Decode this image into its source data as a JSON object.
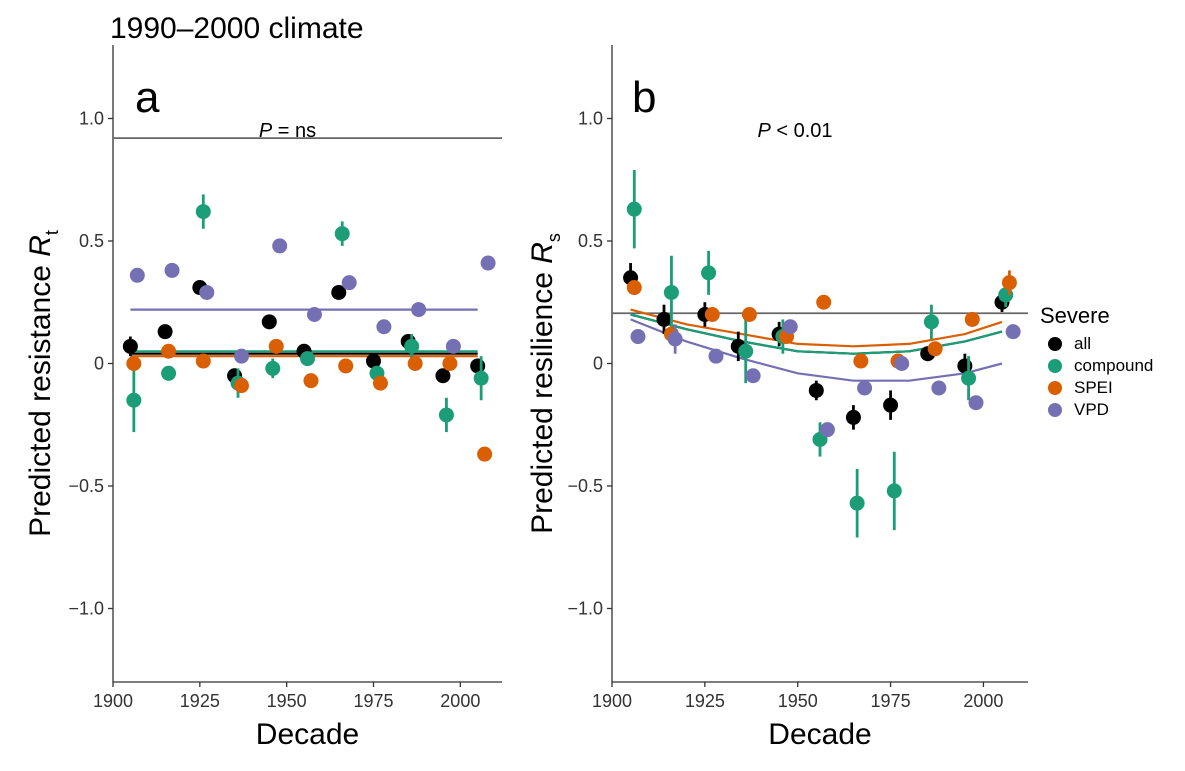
{
  "figure_title": "1990–2000 climate",
  "legend": {
    "title": "Severe",
    "items": [
      {
        "label": "all",
        "color": "#000000"
      },
      {
        "label": "compound",
        "color": "#1b9e77"
      },
      {
        "label": "SPEI",
        "color": "#d95f02"
      },
      {
        "label": "VPD",
        "color": "#7570b3"
      }
    ]
  },
  "chart_data": [
    {
      "type": "scatter",
      "panel_label": "a",
      "annotation": {
        "italic": "P",
        "rest": " = ns"
      },
      "xlabel": "Decade",
      "ylabel": {
        "main": "Predicted resistance ",
        "italic": "R",
        "sub": "t"
      },
      "xlim": [
        1900,
        2012
      ],
      "ylim": [
        -1.3,
        1.3
      ],
      "xticks": [
        1900,
        1925,
        1950,
        1975,
        2000
      ],
      "yticks": [
        1.0,
        0.5,
        0,
        -0.5,
        -1.0
      ],
      "ytick_labels": [
        "1.0",
        "0.5",
        "0",
        "−0.5",
        "−1.0"
      ],
      "reference_line": 0.92,
      "series": [
        {
          "name": "all",
          "color": "#000000",
          "points": [
            [
              1905,
              0.07,
              0.04
            ],
            [
              1915,
              0.13,
              0.02
            ],
            [
              1925,
              0.31,
              0.02
            ],
            [
              1935,
              -0.05,
              0.03
            ],
            [
              1945,
              0.17,
              0.02
            ],
            [
              1955,
              0.05,
              0.02
            ],
            [
              1965,
              0.29,
              0.02
            ],
            [
              1975,
              0.01,
              0.02
            ],
            [
              1985,
              0.09,
              0.03
            ],
            [
              1995,
              -0.05,
              0.02
            ],
            [
              2005,
              -0.01,
              0.03
            ]
          ],
          "fit": [
            [
              1905,
              0.04
            ],
            [
              2005,
              0.04
            ]
          ]
        },
        {
          "name": "compound",
          "color": "#1b9e77",
          "points": [
            [
              1906,
              -0.15,
              0.13
            ],
            [
              1916,
              -0.04,
              0.03
            ],
            [
              1926,
              0.62,
              0.07
            ],
            [
              1936,
              -0.08,
              0.06
            ],
            [
              1946,
              -0.02,
              0.04
            ],
            [
              1956,
              0.02,
              0.02
            ],
            [
              1966,
              0.53,
              0.05
            ],
            [
              1976,
              -0.04,
              0.03
            ],
            [
              1986,
              0.07,
              0.05
            ],
            [
              1996,
              -0.21,
              0.07
            ],
            [
              2006,
              -0.06,
              0.09
            ]
          ],
          "fit": [
            [
              1905,
              0.05
            ],
            [
              2005,
              0.05
            ]
          ]
        },
        {
          "name": "SPEI",
          "color": "#d95f02",
          "points": [
            [
              1906,
              0,
              0.02
            ],
            [
              1916,
              0.05,
              0.02
            ],
            [
              1926,
              0.01,
              0.02
            ],
            [
              1937,
              -0.09,
              0.03
            ],
            [
              1947,
              0.07,
              0.02
            ],
            [
              1957,
              -0.07,
              0.02
            ],
            [
              1967,
              -0.01,
              0.02
            ],
            [
              1977,
              -0.08,
              0.02
            ],
            [
              1987,
              0,
              0.02
            ],
            [
              1997,
              0,
              0.02
            ],
            [
              2007,
              -0.37,
              0.03
            ]
          ],
          "fit": [
            [
              1905,
              0.03
            ],
            [
              2005,
              0.03
            ]
          ]
        },
        {
          "name": "VPD",
          "color": "#7570b3",
          "points": [
            [
              1907,
              0.36,
              0.02
            ],
            [
              1917,
              0.38,
              0.02
            ],
            [
              1927,
              0.29,
              0.02
            ],
            [
              1937,
              0.03,
              0.02
            ],
            [
              1948,
              0.48,
              0.02
            ],
            [
              1958,
              0.2,
              0.02
            ],
            [
              1968,
              0.33,
              0.02
            ],
            [
              1978,
              0.15,
              0.02
            ],
            [
              1988,
              0.22,
              0.02
            ],
            [
              1998,
              0.07,
              0.02
            ],
            [
              2008,
              0.41,
              0.02
            ]
          ],
          "fit": [
            [
              1905,
              0.22
            ],
            [
              2005,
              0.22
            ]
          ]
        }
      ]
    },
    {
      "type": "scatter",
      "panel_label": "b",
      "annotation": {
        "italic": "P",
        "rest": " < 0.01"
      },
      "xlabel": "Decade",
      "ylabel": {
        "main": "Predicted resilience ",
        "italic": "R",
        "sub": "s"
      },
      "xlim": [
        1900,
        2012
      ],
      "ylim": [
        -1.3,
        1.3
      ],
      "xticks": [
        1900,
        1925,
        1950,
        1975,
        2000
      ],
      "yticks": [
        1.0,
        0.5,
        0,
        -0.5,
        -1.0
      ],
      "ytick_labels": [
        "1.0",
        "0.5",
        "0",
        "−0.5",
        "−1.0"
      ],
      "reference_line": 0.205,
      "series": [
        {
          "name": "all",
          "color": "#000000",
          "points": [
            [
              1905,
              0.35,
              0.06
            ],
            [
              1914,
              0.18,
              0.06
            ],
            [
              1925,
              0.2,
              0.05
            ],
            [
              1934,
              0.07,
              0.06
            ],
            [
              1945,
              0.12,
              0.05
            ],
            [
              1955,
              -0.11,
              0.04
            ],
            [
              1965,
              -0.22,
              0.05
            ],
            [
              1975,
              -0.17,
              0.06
            ],
            [
              1985,
              0.04,
              0.03
            ],
            [
              1995,
              -0.01,
              0.05
            ],
            [
              2005,
              0.25,
              0.04
            ]
          ],
          "fit": [
            [
              1905,
              0.2
            ],
            [
              1920,
              0.14
            ],
            [
              1935,
              0.09
            ],
            [
              1950,
              0.05
            ],
            [
              1965,
              0.04
            ],
            [
              1980,
              0.05
            ],
            [
              1995,
              0.09
            ],
            [
              2005,
              0.13
            ]
          ]
        },
        {
          "name": "compound",
          "color": "#1b9e77",
          "points": [
            [
              1906,
              0.63,
              0.16
            ],
            [
              1916,
              0.29,
              0.15
            ],
            [
              1926,
              0.37,
              0.09
            ],
            [
              1936,
              0.05,
              0.13
            ],
            [
              1946,
              0.11,
              0.07
            ],
            [
              1956,
              -0.31,
              0.07
            ],
            [
              1966,
              -0.57,
              0.14
            ],
            [
              1976,
              -0.52,
              0.16
            ],
            [
              1986,
              0.17,
              0.07
            ],
            [
              1996,
              -0.06,
              0.09
            ],
            [
              2006,
              0.28,
              0.05
            ]
          ],
          "fit": [
            [
              1905,
              0.2
            ],
            [
              1920,
              0.14
            ],
            [
              1935,
              0.09
            ],
            [
              1950,
              0.05
            ],
            [
              1965,
              0.04
            ],
            [
              1980,
              0.05
            ],
            [
              1995,
              0.09
            ],
            [
              2005,
              0.13
            ]
          ]
        },
        {
          "name": "SPEI",
          "color": "#d95f02",
          "points": [
            [
              1906,
              0.31,
              0.02
            ],
            [
              1916,
              0.12,
              0.02
            ],
            [
              1927,
              0.2,
              0.02
            ],
            [
              1937,
              0.2,
              0.02
            ],
            [
              1947,
              0.11,
              0.02
            ],
            [
              1957,
              0.25,
              0.02
            ],
            [
              1967,
              0.01,
              0.02
            ],
            [
              1977,
              0.01,
              0.02
            ],
            [
              1987,
              0.06,
              0.02
            ],
            [
              1997,
              0.18,
              0.02
            ],
            [
              2007,
              0.33,
              0.05
            ]
          ],
          "fit": [
            [
              1905,
              0.22
            ],
            [
              1920,
              0.16
            ],
            [
              1935,
              0.12
            ],
            [
              1950,
              0.08
            ],
            [
              1965,
              0.07
            ],
            [
              1980,
              0.08
            ],
            [
              1995,
              0.12
            ],
            [
              2005,
              0.17
            ]
          ]
        },
        {
          "name": "VPD",
          "color": "#7570b3",
          "points": [
            [
              1907,
              0.11,
              0.02
            ],
            [
              1917,
              0.1,
              0.06
            ],
            [
              1928,
              0.03,
              0.02
            ],
            [
              1938,
              -0.05,
              0.02
            ],
            [
              1948,
              0.15,
              0.02
            ],
            [
              1958,
              -0.27,
              0.02
            ],
            [
              1968,
              -0.1,
              0.02
            ],
            [
              1978,
              0,
              0.02
            ],
            [
              1988,
              -0.1,
              0.02
            ],
            [
              1998,
              -0.16,
              0.02
            ],
            [
              2008,
              0.13,
              0.02
            ]
          ],
          "fit": [
            [
              1905,
              0.18
            ],
            [
              1920,
              0.09
            ],
            [
              1935,
              0.02
            ],
            [
              1950,
              -0.04
            ],
            [
              1965,
              -0.07
            ],
            [
              1980,
              -0.07
            ],
            [
              1995,
              -0.04
            ],
            [
              2005,
              0
            ]
          ]
        }
      ]
    }
  ]
}
